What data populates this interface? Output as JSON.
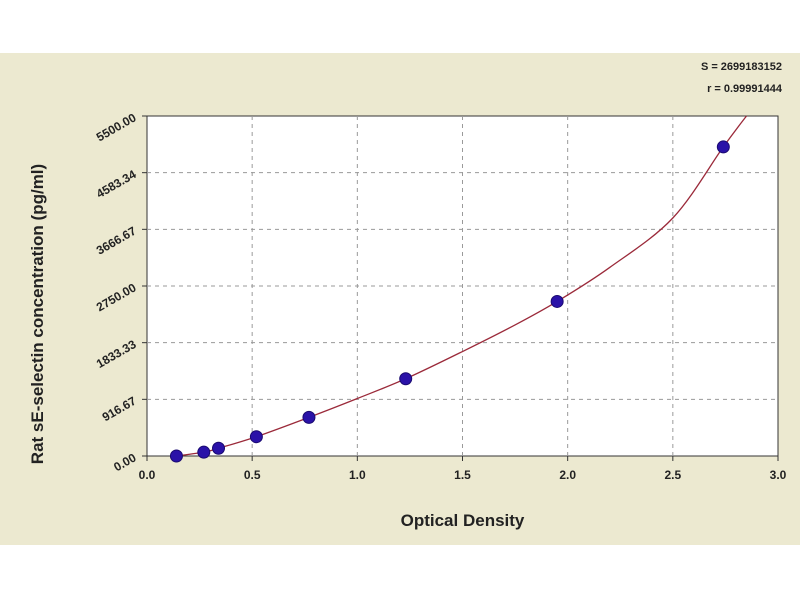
{
  "chart_data": {
    "type": "scatter",
    "xlabel": "Optical Density",
    "ylabel": "Rat sE-selectin concentration (pg/ml)",
    "xlim": [
      0.0,
      3.0
    ],
    "ylim": [
      0.0,
      5500.0
    ],
    "x_ticks": [
      0.0,
      0.5,
      1.0,
      1.5,
      2.0,
      2.5,
      3.0
    ],
    "x_tick_labels": [
      "0.0",
      "0.5",
      "1.0",
      "1.5",
      "2.0",
      "2.5",
      "3.0"
    ],
    "y_ticks": [
      0,
      916.67,
      1833.33,
      2750,
      3666.67,
      4583.34,
      5500
    ],
    "y_tick_labels": [
      "0.00",
      "916.67",
      "1833.33",
      "2750.00",
      "3666.67",
      "4583.34",
      "5500.00"
    ],
    "grid": true,
    "stats": [
      "S = 2699183152",
      "r = 0.99991444"
    ],
    "points": [
      {
        "x": 0.14,
        "y": 0
      },
      {
        "x": 0.27,
        "y": 62
      },
      {
        "x": 0.34,
        "y": 125
      },
      {
        "x": 0.52,
        "y": 312
      },
      {
        "x": 0.77,
        "y": 625
      },
      {
        "x": 1.23,
        "y": 1250
      },
      {
        "x": 1.95,
        "y": 2500
      },
      {
        "x": 2.74,
        "y": 5000
      }
    ],
    "fit_curve": {
      "x": [
        0.14,
        0.27,
        0.34,
        0.52,
        0.77,
        1.0,
        1.23,
        1.5,
        1.75,
        1.95,
        2.2,
        2.5,
        2.74,
        2.85
      ],
      "y": [
        0,
        62,
        125,
        312,
        625,
        930,
        1250,
        1690,
        2120,
        2500,
        3050,
        3850,
        5000,
        5500
      ]
    },
    "colors": {
      "point": "#2a12a8",
      "curve": "#9b2a3a",
      "plot_bg": "#ffffff",
      "panel_bg": "#ece9d0",
      "grid": "#9a9a9a"
    }
  }
}
